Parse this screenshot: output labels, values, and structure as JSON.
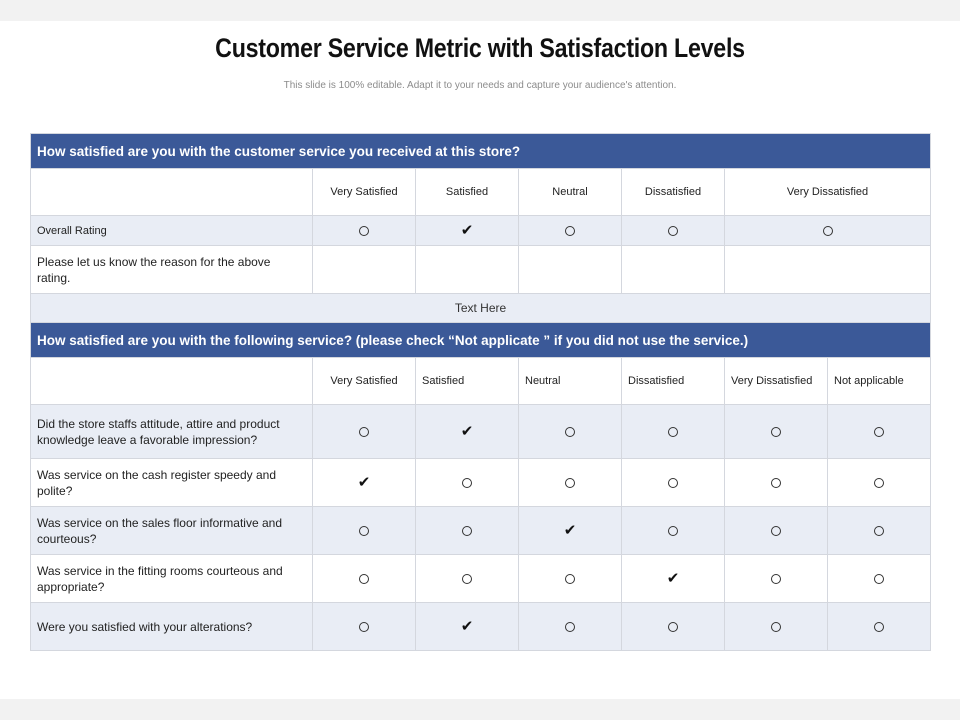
{
  "title": "Customer Service Metric with Satisfaction Levels",
  "subtitle": "This slide is 100% editable. Adapt it to your needs and capture your audience's attention.",
  "section1": {
    "question": "How satisfied are you with the customer service you received at this store?",
    "columns": [
      "Very Satisfied",
      "Satisfied",
      "Neutral",
      "Dissatisfied",
      "Very Dissatisfied"
    ],
    "overall_label": "Overall Rating",
    "overall_selected": "Satisfied",
    "reason_label": "Please let us know the reason for the above rating.",
    "text_here": "Text Here"
  },
  "section2": {
    "question": "How satisfied are you with the following service? (please check “Not applicate ” if you did not use the service.)",
    "columns": [
      "Very Satisfied",
      "Satisfied",
      "Neutral",
      "Dissatisfied",
      "Very Dissatisfied",
      "Not applicable"
    ],
    "rows": [
      {
        "label": "Did the store staffs attitude, attire and product knowledge leave a favorable impression?",
        "selected": "Satisfied"
      },
      {
        "label": "Was service on the cash register speedy and polite?",
        "selected": "Very Satisfied"
      },
      {
        "label": "Was service on the sales floor informative and courteous?",
        "selected": "Neutral"
      },
      {
        "label": "Was service in the fitting rooms courteous and appropriate?",
        "selected": "Dissatisfied"
      },
      {
        "label": "Were you satisfied with your alterations?",
        "selected": "Satisfied"
      }
    ]
  },
  "icons": {
    "unselected": "radio-empty-icon",
    "selected": "checkmark-icon"
  },
  "colors": {
    "header_bg": "#3b5998",
    "alt_row_bg": "#e9edf5"
  }
}
